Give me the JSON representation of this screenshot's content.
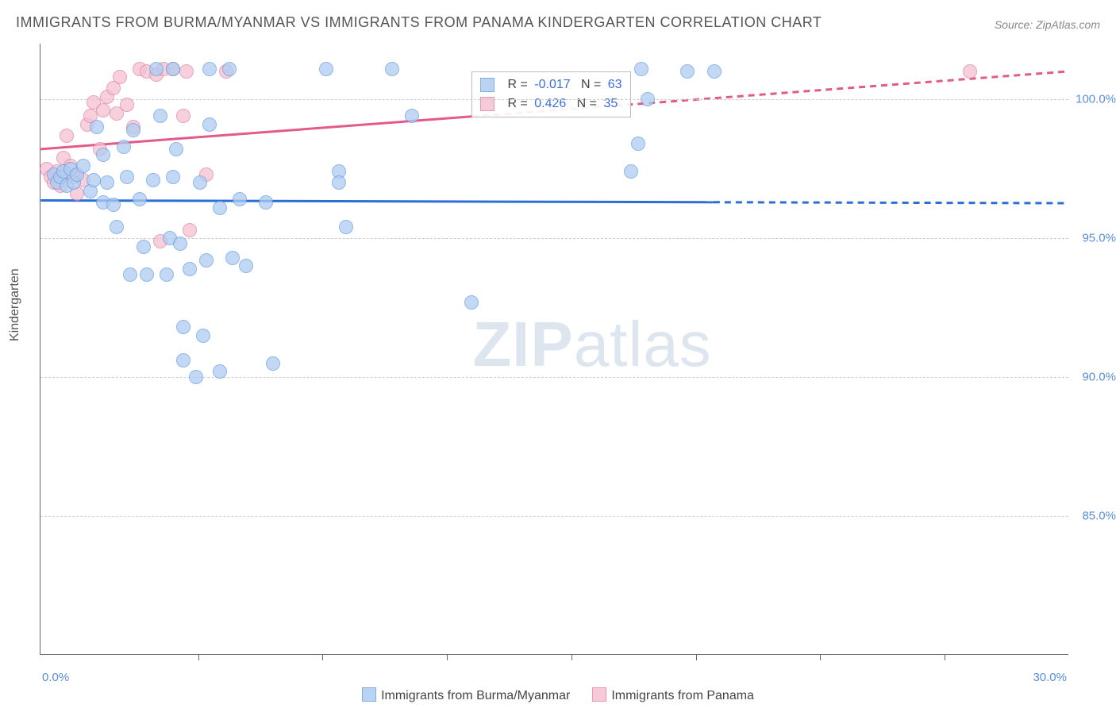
{
  "title": "IMMIGRANTS FROM BURMA/MYANMAR VS IMMIGRANTS FROM PANAMA KINDERGARTEN CORRELATION CHART",
  "source": "Source: ZipAtlas.com",
  "ylabel": "Kindergarten",
  "watermark": {
    "zip": "ZIP",
    "atlas": "atlas"
  },
  "xlim": [
    0,
    30
  ],
  "ylim": [
    80,
    102
  ],
  "x_extent_plot": [
    -1.0,
    30.0
  ],
  "yticks": [
    85.0,
    90.0,
    95.0,
    100.0
  ],
  "ytick_labels": [
    "85.0%",
    "90.0%",
    "95.0%",
    "100.0%"
  ],
  "xticks_minor": [
    3.75,
    7.5,
    11.25,
    15.0,
    18.75,
    22.5,
    26.25
  ],
  "xtick_labels": {
    "left": "0.0%",
    "right": "30.0%"
  },
  "marker_radius": 9,
  "colors": {
    "series_a_fill": "#aeccf1",
    "series_a_stroke": "#6a9fe0",
    "series_b_fill": "#f5c1d1",
    "series_b_stroke": "#e383a6",
    "trend_a": "#2a6fd6",
    "trend_b": "#e35a8a",
    "tick_text": "#5b8dd6",
    "watermark": "#dde5ef"
  },
  "bottom_legend": {
    "series_a": "Immigrants from Burma/Myanmar",
    "series_b": "Immigrants from Panama"
  },
  "stats_box": {
    "position_x": 12.0,
    "position_y": 101.0,
    "rows": [
      {
        "swatch": "a",
        "r_label": "R =",
        "r": "-0.017",
        "n_label": "N =",
        "n": "63"
      },
      {
        "swatch": "b",
        "r_label": "R =",
        "r": "0.426",
        "n_label": "N =",
        "n": "35"
      }
    ]
  },
  "trend_lines": {
    "a": {
      "x0": -1.0,
      "y0": 96.35,
      "x1": 30.0,
      "y1": 96.25,
      "solid_until_x": 19.3,
      "width": 3
    },
    "b": {
      "x0": -1.0,
      "y0": 98.2,
      "x1": 30.0,
      "y1": 101.0,
      "solid_until_x": 12.0,
      "width": 3
    }
  },
  "series_a_points": [
    [
      -0.6,
      97.3
    ],
    [
      -0.5,
      97.0
    ],
    [
      -0.4,
      97.2
    ],
    [
      -0.3,
      97.4
    ],
    [
      -0.2,
      96.9
    ],
    [
      -0.1,
      97.5
    ],
    [
      0.0,
      97.0
    ],
    [
      0.1,
      97.3
    ],
    [
      0.3,
      97.6
    ],
    [
      0.5,
      96.7
    ],
    [
      0.6,
      97.1
    ],
    [
      0.7,
      99.0
    ],
    [
      0.9,
      98.0
    ],
    [
      0.9,
      96.3
    ],
    [
      1.0,
      97.0
    ],
    [
      1.2,
      96.2
    ],
    [
      1.3,
      95.4
    ],
    [
      1.5,
      98.3
    ],
    [
      1.6,
      97.2
    ],
    [
      1.7,
      93.7
    ],
    [
      1.8,
      98.9
    ],
    [
      2.0,
      96.4
    ],
    [
      2.1,
      94.7
    ],
    [
      2.2,
      93.7
    ],
    [
      2.4,
      97.1
    ],
    [
      2.5,
      101.1
    ],
    [
      2.6,
      99.4
    ],
    [
      2.8,
      93.7
    ],
    [
      2.9,
      95.0
    ],
    [
      3.0,
      97.2
    ],
    [
      3.0,
      101.1
    ],
    [
      3.1,
      98.2
    ],
    [
      3.2,
      94.8
    ],
    [
      3.3,
      91.8
    ],
    [
      3.3,
      90.6
    ],
    [
      3.5,
      93.9
    ],
    [
      3.7,
      90.0
    ],
    [
      3.8,
      97.0
    ],
    [
      3.9,
      91.5
    ],
    [
      4.0,
      94.2
    ],
    [
      4.1,
      101.1
    ],
    [
      4.1,
      99.1
    ],
    [
      4.4,
      96.1
    ],
    [
      4.4,
      90.2
    ],
    [
      4.7,
      101.1
    ],
    [
      4.8,
      94.3
    ],
    [
      5.0,
      96.4
    ],
    [
      5.2,
      94.0
    ],
    [
      5.8,
      96.3
    ],
    [
      6.0,
      90.5
    ],
    [
      7.6,
      101.1
    ],
    [
      8.0,
      97.4
    ],
    [
      8.0,
      97.0
    ],
    [
      8.2,
      95.4
    ],
    [
      9.6,
      101.1
    ],
    [
      10.2,
      99.4
    ],
    [
      12.0,
      92.7
    ],
    [
      16.8,
      97.4
    ],
    [
      17.0,
      98.4
    ],
    [
      17.1,
      101.1
    ],
    [
      17.3,
      100.0
    ],
    [
      18.5,
      101.0
    ],
    [
      19.3,
      101.0
    ]
  ],
  "series_b_points": [
    [
      -0.8,
      97.5
    ],
    [
      -0.7,
      97.2
    ],
    [
      -0.6,
      97.0
    ],
    [
      -0.5,
      97.4
    ],
    [
      -0.4,
      96.9
    ],
    [
      -0.4,
      97.2
    ],
    [
      -0.3,
      97.9
    ],
    [
      -0.2,
      98.7
    ],
    [
      -0.1,
      97.6
    ],
    [
      0.0,
      97.2
    ],
    [
      0.1,
      96.6
    ],
    [
      0.3,
      97.1
    ],
    [
      0.4,
      99.1
    ],
    [
      0.5,
      99.4
    ],
    [
      0.6,
      99.9
    ],
    [
      0.8,
      98.2
    ],
    [
      0.9,
      99.6
    ],
    [
      1.0,
      100.1
    ],
    [
      1.2,
      100.4
    ],
    [
      1.3,
      99.5
    ],
    [
      1.4,
      100.8
    ],
    [
      1.6,
      99.8
    ],
    [
      1.8,
      99.0
    ],
    [
      2.0,
      101.1
    ],
    [
      2.2,
      101.0
    ],
    [
      2.5,
      100.9
    ],
    [
      2.6,
      94.9
    ],
    [
      2.7,
      101.1
    ],
    [
      3.0,
      101.1
    ],
    [
      3.3,
      99.4
    ],
    [
      3.4,
      101.0
    ],
    [
      3.5,
      95.3
    ],
    [
      4.6,
      101.0
    ],
    [
      4.0,
      97.3
    ],
    [
      27.0,
      101.0
    ]
  ]
}
